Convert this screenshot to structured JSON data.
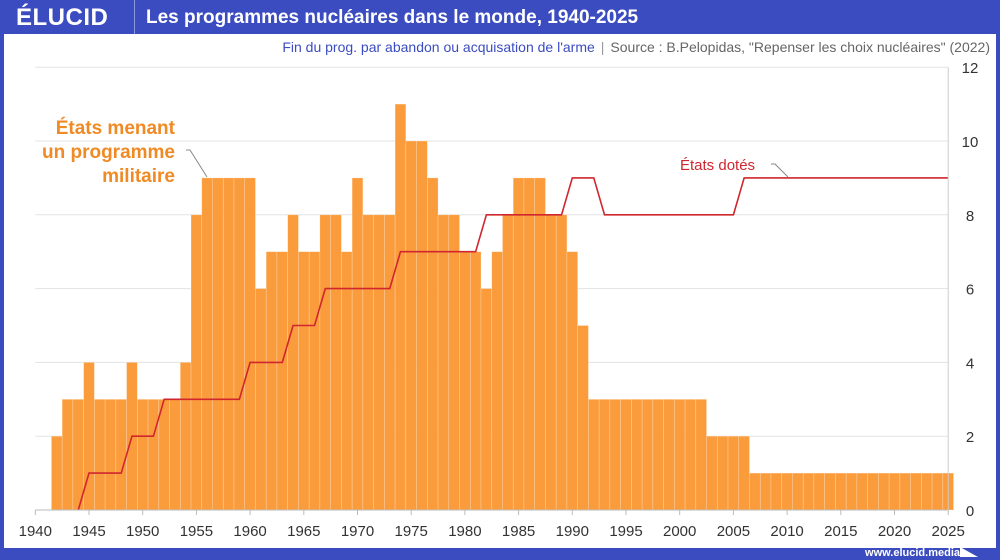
{
  "header": {
    "logo": "ÉLUCID",
    "title": "Les programmes nucléaires dans le monde, 1940-2025"
  },
  "subtitle": {
    "note": "Fin du prog. par abandon ou acquisation de l'arme",
    "separator": "|",
    "source": "Source : B.Pelopidas, \"Repenser les choix nucléaires\" (2022)"
  },
  "footer": {
    "url": "www.elucid.media"
  },
  "colors": {
    "brand": "#3b4cc0",
    "bars": "#fb9c3c",
    "line": "#d0262e",
    "bar_label": "#f08a24"
  },
  "chart_data": {
    "type": "bar",
    "title": "Les programmes nucléaires dans le monde, 1940-2025",
    "xlim": [
      1940,
      2025
    ],
    "ylim": [
      0,
      12
    ],
    "xticks": [
      "1940",
      "1945",
      "1950",
      "1955",
      "1960",
      "1965",
      "1970",
      "1975",
      "1980",
      "1985",
      "1990",
      "1995",
      "2000",
      "2005",
      "2010",
      "2015",
      "2020",
      "2025"
    ],
    "yticks": [
      "0",
      "2",
      "4",
      "6",
      "8",
      "10",
      "12"
    ],
    "y_axis_side": "right",
    "grid": true,
    "series": [
      {
        "name": "États menant un programme militaire",
        "name_lines": [
          "États menant",
          "un programme",
          "militaire"
        ],
        "type": "bar",
        "x": [
          1942,
          1943,
          1944,
          1945,
          1946,
          1947,
          1948,
          1949,
          1950,
          1951,
          1952,
          1953,
          1954,
          1955,
          1956,
          1957,
          1958,
          1959,
          1960,
          1961,
          1962,
          1963,
          1964,
          1965,
          1966,
          1967,
          1968,
          1969,
          1970,
          1971,
          1972,
          1973,
          1974,
          1975,
          1976,
          1977,
          1978,
          1979,
          1980,
          1981,
          1982,
          1983,
          1984,
          1985,
          1986,
          1987,
          1988,
          1989,
          1990,
          1991,
          1992,
          1993,
          1994,
          1995,
          1996,
          1997,
          1998,
          1999,
          2000,
          2001,
          2002,
          2003,
          2004,
          2005,
          2006,
          2007,
          2008,
          2009,
          2010,
          2011,
          2012,
          2013,
          2014,
          2015,
          2016,
          2017,
          2018,
          2019,
          2020,
          2021,
          2022,
          2023,
          2024,
          2025
        ],
        "values": [
          2,
          3,
          3,
          4,
          3,
          3,
          3,
          4,
          3,
          3,
          3,
          3,
          4,
          8,
          9,
          9,
          9,
          9,
          9,
          6,
          7,
          7,
          8,
          7,
          7,
          8,
          8,
          7,
          9,
          8,
          8,
          8,
          11,
          10,
          10,
          9,
          8,
          8,
          7,
          7,
          6,
          7,
          8,
          9,
          9,
          9,
          8,
          8,
          7,
          5,
          3,
          3,
          3,
          3,
          3,
          3,
          3,
          3,
          3,
          3,
          3,
          2,
          2,
          2,
          2,
          1,
          1,
          1,
          1,
          1,
          1,
          1,
          1,
          1,
          1,
          1,
          1,
          1,
          1,
          1,
          1,
          1,
          1,
          1
        ]
      },
      {
        "name": "États dotés",
        "type": "line",
        "x": [
          1944,
          1945,
          1946,
          1947,
          1948,
          1949,
          1950,
          1951,
          1952,
          1953,
          1954,
          1955,
          1956,
          1957,
          1958,
          1959,
          1960,
          1961,
          1962,
          1963,
          1964,
          1965,
          1966,
          1967,
          1968,
          1969,
          1970,
          1971,
          1972,
          1973,
          1974,
          1975,
          1976,
          1977,
          1978,
          1979,
          1980,
          1981,
          1982,
          1983,
          1984,
          1985,
          1986,
          1987,
          1988,
          1989,
          1990,
          1991,
          1992,
          1993,
          1994,
          1995,
          1996,
          1997,
          1998,
          1999,
          2000,
          2001,
          2002,
          2003,
          2004,
          2005,
          2006,
          2007,
          2008,
          2009,
          2010,
          2011,
          2012,
          2013,
          2014,
          2015,
          2016,
          2017,
          2018,
          2019,
          2020,
          2021,
          2022,
          2023,
          2024,
          2025
        ],
        "values": [
          0,
          1,
          1,
          1,
          1,
          2,
          2,
          2,
          3,
          3,
          3,
          3,
          3,
          3,
          3,
          3,
          4,
          4,
          4,
          4,
          5,
          5,
          5,
          6,
          6,
          6,
          6,
          6,
          6,
          6,
          7,
          7,
          7,
          7,
          7,
          7,
          7,
          7,
          8,
          8,
          8,
          8,
          8,
          8,
          8,
          8,
          9,
          9,
          9,
          8,
          8,
          8,
          8,
          8,
          8,
          8,
          8,
          8,
          8,
          8,
          8,
          8,
          9,
          9,
          9,
          9,
          9,
          9,
          9,
          9,
          9,
          9,
          9,
          9,
          9,
          9,
          9,
          9,
          9,
          9,
          9,
          9
        ]
      }
    ]
  }
}
